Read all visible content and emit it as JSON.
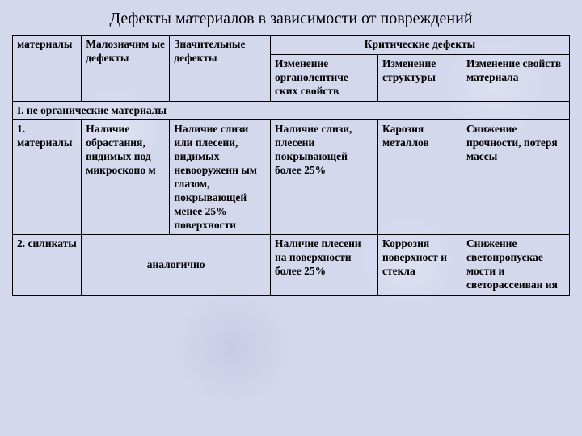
{
  "title": "Дефекты материалов в зависимости от повреждений",
  "head": {
    "c1": "материалы",
    "c2": "Малозначим ые дефекты",
    "c3": "Значительные дефекты",
    "c456": "Критические дефекты",
    "c4": "Изменение органолептиче ских свойств",
    "c5": "Изменение структуры",
    "c6": "Изменение свойств материала"
  },
  "section1": "I. не органические материалы",
  "r1": {
    "c1": "1. материалы",
    "c2": "Наличие обрастания, видимых под микроскопо м",
    "c3": "Наличие слизи или плесени, видимых невооруженн ым глазом, покрывающей менее 25% поверхности",
    "c4": "Наличие слизи, плесени покрывающей более 25%",
    "c5": "Карозия металлов",
    "c6": "Снижение прочности, потеря массы"
  },
  "r2": {
    "c1": "2. силикаты",
    "c23": "аналогично",
    "c4": "Наличие плесени на поверхности более 25%",
    "c5": "Коррозия поверхност и стекла",
    "c6": "Снижение светопропускае мости и светорассеиван ия"
  }
}
